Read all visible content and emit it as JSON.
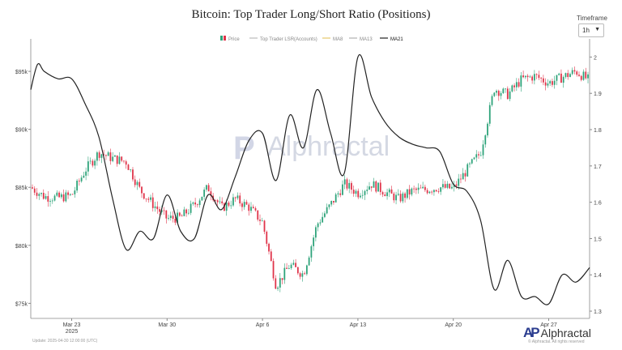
{
  "title": "Bitcoin: Top Trader Long/Short Ratio (Positions)",
  "timeframe": {
    "label": "Timeframe",
    "value": "1h"
  },
  "watermark": "Alphractal",
  "footer": {
    "left": "Update: 2025-04-30 12:00:00 (UTC)",
    "right": "© Alphractal. All rights reserved"
  },
  "logo": {
    "mark": "AP",
    "name": "Alphractal"
  },
  "colors": {
    "up": "#2ea37a",
    "down": "#e0344a",
    "ratio": "#222222",
    "ma8": "#e6c86a",
    "ma13": "#b0b0b0"
  },
  "chart_data": {
    "type": "line",
    "legend": [
      {
        "name": "Price",
        "icon": "candle-icon"
      },
      {
        "name": "Top Trader LSR(Accounts)",
        "icon": "line-icon"
      },
      {
        "name": "MA8",
        "icon": "line-icon"
      },
      {
        "name": "MA13",
        "icon": "line-icon"
      },
      {
        "name": "MA21",
        "icon": "line-icon"
      }
    ],
    "legend_position": "top-center",
    "grid": false,
    "x_range": [
      "2025-03-20",
      "2025-04-30"
    ],
    "x_ticks": [
      {
        "date": "2025-03-23",
        "label": "Mar 23",
        "sub": "2025"
      },
      {
        "date": "2025-03-30",
        "label": "Mar 30",
        "sub": ""
      },
      {
        "date": "2025-04-06",
        "label": "Apr 6",
        "sub": ""
      },
      {
        "date": "2025-04-13",
        "label": "Apr 13",
        "sub": ""
      },
      {
        "date": "2025-04-20",
        "label": "Apr 20",
        "sub": ""
      },
      {
        "date": "2025-04-27",
        "label": "Apr 27",
        "sub": ""
      }
    ],
    "y_left": {
      "range": [
        73700,
        97800
      ],
      "ticks": [
        {
          "v": 75000,
          "label": "$75k"
        },
        {
          "v": 80000,
          "label": "$80k"
        },
        {
          "v": 85000,
          "label": "$85k"
        },
        {
          "v": 90000,
          "label": "$90k"
        },
        {
          "v": 95000,
          "label": "$95k"
        }
      ]
    },
    "y_right": {
      "range": [
        1.28,
        2.05
      ],
      "ticks": [
        {
          "v": 1.3,
          "label": "1.3"
        },
        {
          "v": 1.4,
          "label": "1.4"
        },
        {
          "v": 1.5,
          "label": "1.5"
        },
        {
          "v": 1.6,
          "label": "1.6"
        },
        {
          "v": 1.7,
          "label": "1.7"
        },
        {
          "v": 1.8,
          "label": "1.8"
        },
        {
          "v": 1.9,
          "label": "1.9"
        },
        {
          "v": 2,
          "label": "2"
        }
      ]
    },
    "price": {
      "name": "Price",
      "x": [
        "2025-03-20",
        "2025-03-21",
        "2025-03-22",
        "2025-03-23",
        "2025-03-24",
        "2025-03-25",
        "2025-03-26",
        "2025-03-27",
        "2025-03-28",
        "2025-03-29",
        "2025-03-30",
        "2025-03-31",
        "2025-04-01",
        "2025-04-02",
        "2025-04-03",
        "2025-04-04",
        "2025-04-05",
        "2025-04-06",
        "2025-04-07",
        "2025-04-08",
        "2025-04-09",
        "2025-04-10",
        "2025-04-11",
        "2025-04-12",
        "2025-04-13",
        "2025-04-14",
        "2025-04-15",
        "2025-04-16",
        "2025-04-17",
        "2025-04-18",
        "2025-04-19",
        "2025-04-20",
        "2025-04-21",
        "2025-04-22",
        "2025-04-23",
        "2025-04-24",
        "2025-04-25",
        "2025-04-26",
        "2025-04-27",
        "2025-04-28",
        "2025-04-29",
        "2025-04-30"
      ],
      "y": [
        85000,
        84200,
        84100,
        84300,
        86500,
        88000,
        87500,
        87200,
        84800,
        83500,
        82300,
        82400,
        83500,
        85000,
        83200,
        84000,
        83300,
        82000,
        76500,
        78300,
        77500,
        81800,
        83500,
        85300,
        84500,
        85300,
        84600,
        84000,
        84700,
        84800,
        85000,
        84900,
        86500,
        88000,
        93500,
        93000,
        94300,
        94600,
        94000,
        94500,
        95000,
        94200
      ]
    },
    "ratio": {
      "name": "MA21",
      "x": [
        "2025-03-20",
        "2025-03-20T12:00",
        "2025-03-21",
        "2025-03-22",
        "2025-03-23",
        "2025-03-24",
        "2025-03-25",
        "2025-03-26",
        "2025-03-27",
        "2025-03-28",
        "2025-03-29",
        "2025-03-30",
        "2025-03-31",
        "2025-04-01",
        "2025-04-02",
        "2025-04-03",
        "2025-04-04",
        "2025-04-05",
        "2025-04-06",
        "2025-04-07",
        "2025-04-08",
        "2025-04-09",
        "2025-04-10",
        "2025-04-11",
        "2025-04-12",
        "2025-04-13",
        "2025-04-14",
        "2025-04-15",
        "2025-04-16",
        "2025-04-17",
        "2025-04-18",
        "2025-04-19",
        "2025-04-20",
        "2025-04-21",
        "2025-04-22",
        "2025-04-23",
        "2025-04-24",
        "2025-04-25",
        "2025-04-26",
        "2025-04-27",
        "2025-04-28",
        "2025-04-29",
        "2025-04-30"
      ],
      "y": [
        1.91,
        1.98,
        1.96,
        1.94,
        1.94,
        1.87,
        1.78,
        1.61,
        1.47,
        1.52,
        1.5,
        1.62,
        1.52,
        1.5,
        1.62,
        1.58,
        1.67,
        1.77,
        1.79,
        1.66,
        1.84,
        1.75,
        1.91,
        1.79,
        1.68,
        2.0,
        1.89,
        1.82,
        1.78,
        1.76,
        1.75,
        1.74,
        1.65,
        1.63,
        1.55,
        1.36,
        1.44,
        1.34,
        1.34,
        1.32,
        1.4,
        1.38,
        1.42
      ]
    }
  }
}
